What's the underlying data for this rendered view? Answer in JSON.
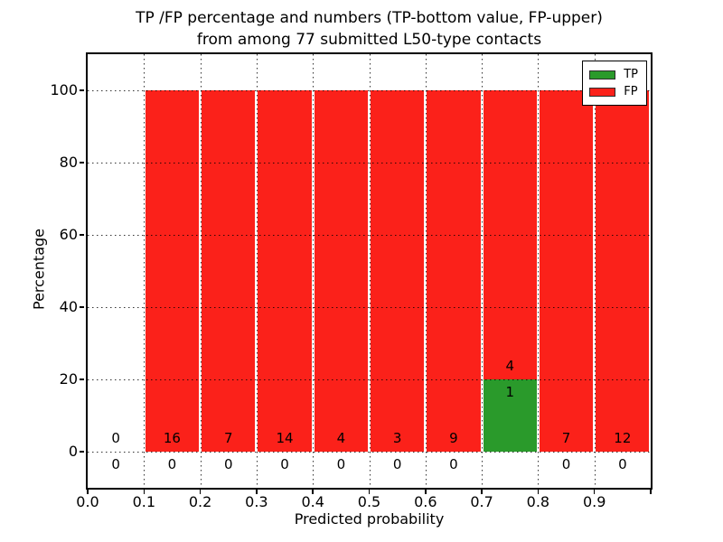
{
  "chart_data": {
    "type": "bar",
    "stacked": true,
    "title": "TP /FP percentage and numbers (TP-bottom value, FP-upper) from among 77 submitted L50-type contacts",
    "title_line1": "TP /FP percentage and numbers (TP-bottom value, FP-upper)",
    "title_line2": "from among 77 submitted L50-type contacts",
    "xlabel": "Predicted probability",
    "ylabel": "Percentage",
    "xlim": [
      0.0,
      1.0
    ],
    "ylim": [
      -10,
      110
    ],
    "grid": "dotted, drawn above bars",
    "colors": {
      "tp": "#2a9a2b",
      "fp": "#fb211a"
    },
    "yticks": [
      {
        "pos": 0,
        "label": "0"
      },
      {
        "pos": 20,
        "label": "20"
      },
      {
        "pos": 40,
        "label": "40"
      },
      {
        "pos": 60,
        "label": "60"
      },
      {
        "pos": 80,
        "label": "80"
      },
      {
        "pos": 100,
        "label": "100"
      }
    ],
    "xticks": [
      {
        "pos": 0.0,
        "label": "0.0"
      },
      {
        "pos": 0.1,
        "label": "0.1"
      },
      {
        "pos": 0.2,
        "label": "0.2"
      },
      {
        "pos": 0.3,
        "label": "0.3"
      },
      {
        "pos": 0.4,
        "label": "0.4"
      },
      {
        "pos": 0.5,
        "label": "0.5"
      },
      {
        "pos": 0.6,
        "label": "0.6"
      },
      {
        "pos": 0.7,
        "label": "0.7"
      },
      {
        "pos": 0.8,
        "label": "0.8"
      },
      {
        "pos": 0.9,
        "label": "0.9"
      },
      {
        "pos": 1.0,
        "label": ""
      }
    ],
    "bins": [
      {
        "x0": 0.0,
        "x1": 0.1,
        "tp_count": "0",
        "fp_count": "0",
        "tp_pct": 0,
        "fp_pct": 0
      },
      {
        "x0": 0.1,
        "x1": 0.2,
        "tp_count": "0",
        "fp_count": "16",
        "tp_pct": 0,
        "fp_pct": 100
      },
      {
        "x0": 0.2,
        "x1": 0.3,
        "tp_count": "0",
        "fp_count": "7",
        "tp_pct": 0,
        "fp_pct": 100
      },
      {
        "x0": 0.3,
        "x1": 0.4,
        "tp_count": "0",
        "fp_count": "14",
        "tp_pct": 0,
        "fp_pct": 100
      },
      {
        "x0": 0.4,
        "x1": 0.5,
        "tp_count": "0",
        "fp_count": "4",
        "tp_pct": 0,
        "fp_pct": 100
      },
      {
        "x0": 0.5,
        "x1": 0.6,
        "tp_count": "0",
        "fp_count": "3",
        "tp_pct": 0,
        "fp_pct": 100
      },
      {
        "x0": 0.6,
        "x1": 0.7,
        "tp_count": "0",
        "fp_count": "9",
        "tp_pct": 0,
        "fp_pct": 100
      },
      {
        "x0": 0.7,
        "x1": 0.8,
        "tp_count": "1",
        "fp_count": "4",
        "tp_pct": 20,
        "fp_pct": 80
      },
      {
        "x0": 0.8,
        "x1": 0.9,
        "tp_count": "0",
        "fp_count": "7",
        "tp_pct": 0,
        "fp_pct": 100
      },
      {
        "x0": 0.9,
        "x1": 1.0,
        "tp_count": "0",
        "fp_count": "12",
        "tp_pct": 0,
        "fp_pct": 100
      }
    ],
    "legend": {
      "position": "upper right",
      "entries": [
        {
          "label": "TP",
          "color_key": "tp"
        },
        {
          "label": "FP",
          "color_key": "fp"
        }
      ]
    }
  }
}
